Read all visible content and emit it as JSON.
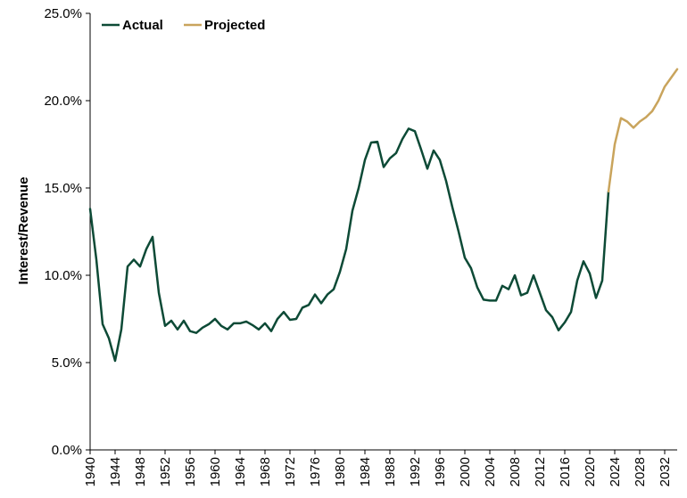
{
  "chart_data": {
    "type": "line",
    "title": "",
    "xlabel": "",
    "ylabel": "Interest/Revenue",
    "xlim": [
      1940,
      2034
    ],
    "ylim": [
      0,
      25
    ],
    "grid": false,
    "legend_position": "top-left",
    "colors": {
      "actual": "#0d4a36",
      "projected": "#c9a45c"
    },
    "y_ticks": [
      {
        "value": 0,
        "label": "0.0%"
      },
      {
        "value": 5,
        "label": "5.0%"
      },
      {
        "value": 10,
        "label": "10.0%"
      },
      {
        "value": 15,
        "label": "15.0%"
      },
      {
        "value": 20,
        "label": "20.0%"
      },
      {
        "value": 25,
        "label": "25.0%"
      }
    ],
    "x_ticks": [
      "1940",
      "1944",
      "1948",
      "1952",
      "1956",
      "1960",
      "1964",
      "1968",
      "1972",
      "1976",
      "1980",
      "1984",
      "1988",
      "1992",
      "1996",
      "2000",
      "2004",
      "2008",
      "2012",
      "2016",
      "2020",
      "2024",
      "2028",
      "2032"
    ],
    "series": [
      {
        "name": "Actual",
        "color": "#0d4a36",
        "x": [
          1940,
          1941,
          1942,
          1943,
          1944,
          1945,
          1946,
          1947,
          1948,
          1949,
          1950,
          1951,
          1952,
          1953,
          1954,
          1955,
          1956,
          1957,
          1958,
          1959,
          1960,
          1961,
          1962,
          1963,
          1964,
          1965,
          1966,
          1967,
          1968,
          1969,
          1970,
          1971,
          1972,
          1973,
          1974,
          1975,
          1976,
          1977,
          1978,
          1979,
          1980,
          1981,
          1982,
          1983,
          1984,
          1985,
          1986,
          1987,
          1988,
          1989,
          1990,
          1991,
          1992,
          1993,
          1994,
          1995,
          1996,
          1997,
          1998,
          1999,
          2000,
          2001,
          2002,
          2003,
          2004,
          2005,
          2006,
          2007,
          2008,
          2009,
          2010,
          2011,
          2012,
          2013,
          2014,
          2015,
          2016,
          2017,
          2018,
          2019,
          2020,
          2021,
          2022,
          2023
        ],
        "y": [
          13.8,
          10.9,
          7.2,
          6.4,
          5.1,
          6.9,
          10.5,
          10.9,
          10.5,
          11.5,
          12.2,
          9.0,
          7.1,
          7.4,
          6.9,
          7.4,
          6.8,
          6.7,
          7.0,
          7.2,
          7.5,
          7.1,
          6.9,
          7.25,
          7.25,
          7.35,
          7.15,
          6.9,
          7.25,
          6.8,
          7.5,
          7.9,
          7.45,
          7.5,
          8.15,
          8.3,
          8.9,
          8.4,
          8.9,
          9.2,
          10.2,
          11.5,
          13.7,
          15.0,
          16.6,
          17.6,
          17.65,
          16.2,
          16.7,
          17.0,
          17.8,
          18.4,
          18.25,
          17.2,
          16.1,
          17.15,
          16.6,
          15.4,
          13.9,
          12.5,
          11.0,
          10.4,
          9.3,
          8.6,
          8.55,
          8.55,
          9.4,
          9.2,
          10.0,
          8.85,
          9.0,
          10.0,
          9.0,
          8.0,
          7.6,
          6.85,
          7.3,
          7.9,
          9.7,
          10.8,
          10.1,
          8.7,
          9.7,
          14.8
        ]
      },
      {
        "name": "Projected",
        "color": "#c9a45c",
        "x": [
          2023,
          2024,
          2025,
          2026,
          2027,
          2028,
          2029,
          2030,
          2031,
          2032,
          2033,
          2034
        ],
        "y": [
          14.8,
          17.5,
          19.0,
          18.8,
          18.45,
          18.8,
          19.05,
          19.4,
          20.0,
          20.8,
          21.3,
          21.8
        ]
      }
    ]
  }
}
